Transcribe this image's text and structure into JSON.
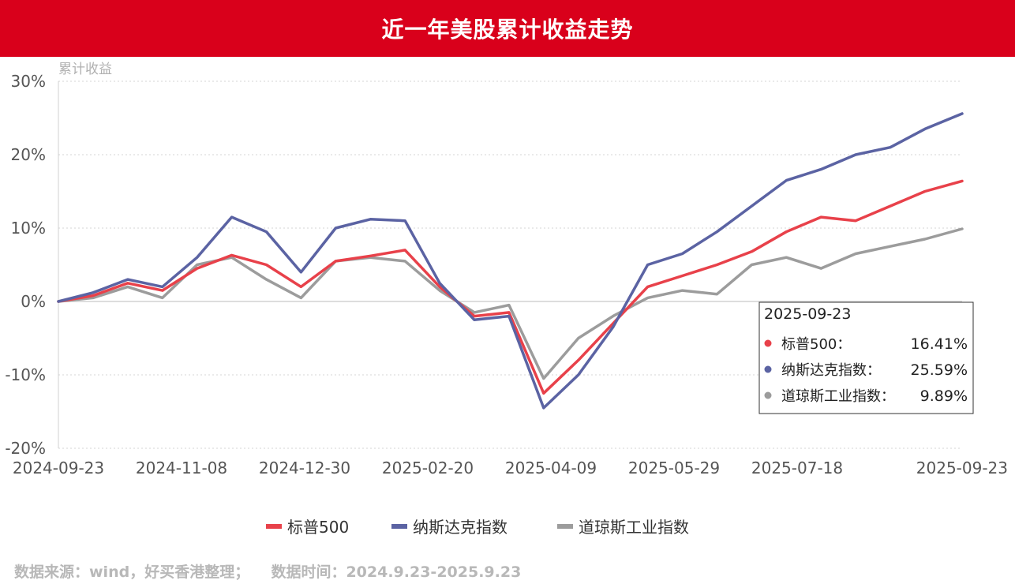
{
  "title": "近一年美股累计收益走势",
  "footer": {
    "source": "数据来源：wind，好买香港整理；",
    "period": "数据时间：2024.9.23-2025.9.23"
  },
  "chart_data": {
    "type": "line",
    "ylabel": "累计收益",
    "ylim": [
      -20,
      30
    ],
    "yticks": [
      30,
      20,
      10,
      0,
      -10,
      -20
    ],
    "ytick_labels": [
      "30%",
      "20%",
      "10%",
      "0%",
      "-10%",
      "-20%"
    ],
    "xtick_labels": [
      "2024-09-23",
      "2024-11-08",
      "2024-12-30",
      "2025-02-20",
      "2025-04-09",
      "2025-05-29",
      "2025-07-18",
      "2025-09-23"
    ],
    "x": [
      "2024-09-23",
      "2024-10-07",
      "2024-10-21",
      "2024-11-04",
      "2024-11-18",
      "2024-12-02",
      "2024-12-16",
      "2024-12-30",
      "2025-01-13",
      "2025-01-27",
      "2025-02-10",
      "2025-02-24",
      "2025-03-10",
      "2025-03-24",
      "2025-04-07",
      "2025-04-21",
      "2025-05-05",
      "2025-05-19",
      "2025-06-02",
      "2025-06-16",
      "2025-06-30",
      "2025-07-14",
      "2025-07-28",
      "2025-08-11",
      "2025-08-25",
      "2025-09-08",
      "2025-09-23"
    ],
    "series": [
      {
        "name": "标普500",
        "color": "#e8414a",
        "values": [
          0.0,
          0.8,
          2.5,
          1.5,
          4.5,
          6.3,
          5.0,
          2.0,
          5.5,
          6.2,
          7.0,
          2.0,
          -2.0,
          -1.5,
          -12.5,
          -8.0,
          -3.0,
          2.0,
          3.5,
          5.0,
          6.8,
          9.5,
          11.5,
          11.0,
          13.0,
          15.0,
          16.41
        ]
      },
      {
        "name": "纳斯达克指数",
        "color": "#5b63a3",
        "values": [
          0.0,
          1.2,
          3.0,
          2.0,
          6.0,
          11.5,
          9.5,
          4.0,
          10.0,
          11.2,
          11.0,
          2.5,
          -2.5,
          -2.0,
          -14.5,
          -10.0,
          -3.5,
          5.0,
          6.5,
          9.5,
          13.0,
          16.5,
          18.0,
          20.0,
          21.0,
          23.5,
          25.59
        ]
      },
      {
        "name": "道琼斯工业指数",
        "color": "#9c9c9c",
        "values": [
          0.0,
          0.5,
          2.0,
          0.5,
          5.0,
          6.0,
          3.0,
          0.5,
          5.5,
          6.0,
          5.5,
          1.5,
          -1.5,
          -0.5,
          -10.5,
          -5.0,
          -2.0,
          0.5,
          1.5,
          1.0,
          5.0,
          6.0,
          4.5,
          6.5,
          7.5,
          8.5,
          9.89
        ]
      }
    ],
    "tooltip": {
      "date": "2025-09-23",
      "rows": [
        {
          "label": "标普500：",
          "value": "16.41%",
          "color": "#e8414a"
        },
        {
          "label": "纳斯达克指数：",
          "value": "25.59%",
          "color": "#5b63a3"
        },
        {
          "label": "道琼斯工业指数：",
          "value": "9.89%",
          "color": "#9c9c9c"
        }
      ]
    },
    "legend_position": "bottom",
    "grid": true
  }
}
